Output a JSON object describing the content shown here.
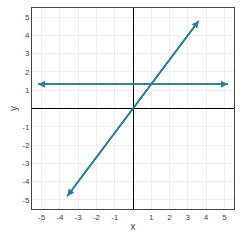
{
  "chart_data": {
    "type": "line",
    "xlabel": "x",
    "ylabel": "y",
    "series": [
      {
        "color": "#2e7d9c",
        "x": [
          -3.6,
          3.6
        ],
        "values": [
          -4.79999999988,
          4.79999999988
        ]
      },
      {
        "color": "#2e7d9c",
        "x": [
          -5.2,
          5.2
        ],
        "values": [
          1.3333333333,
          1.3333333333
        ]
      }
    ],
    "xlim": [
      -5.5,
      5.5
    ],
    "ylim": [
      -5.5,
      5.5
    ],
    "xticks": [
      -5,
      -4,
      -3,
      -2,
      -1,
      1,
      2,
      3,
      4,
      5
    ],
    "yticks": [
      -5,
      -4,
      -3,
      -2,
      -1,
      1,
      2,
      3,
      4,
      5
    ],
    "grid": true
  }
}
